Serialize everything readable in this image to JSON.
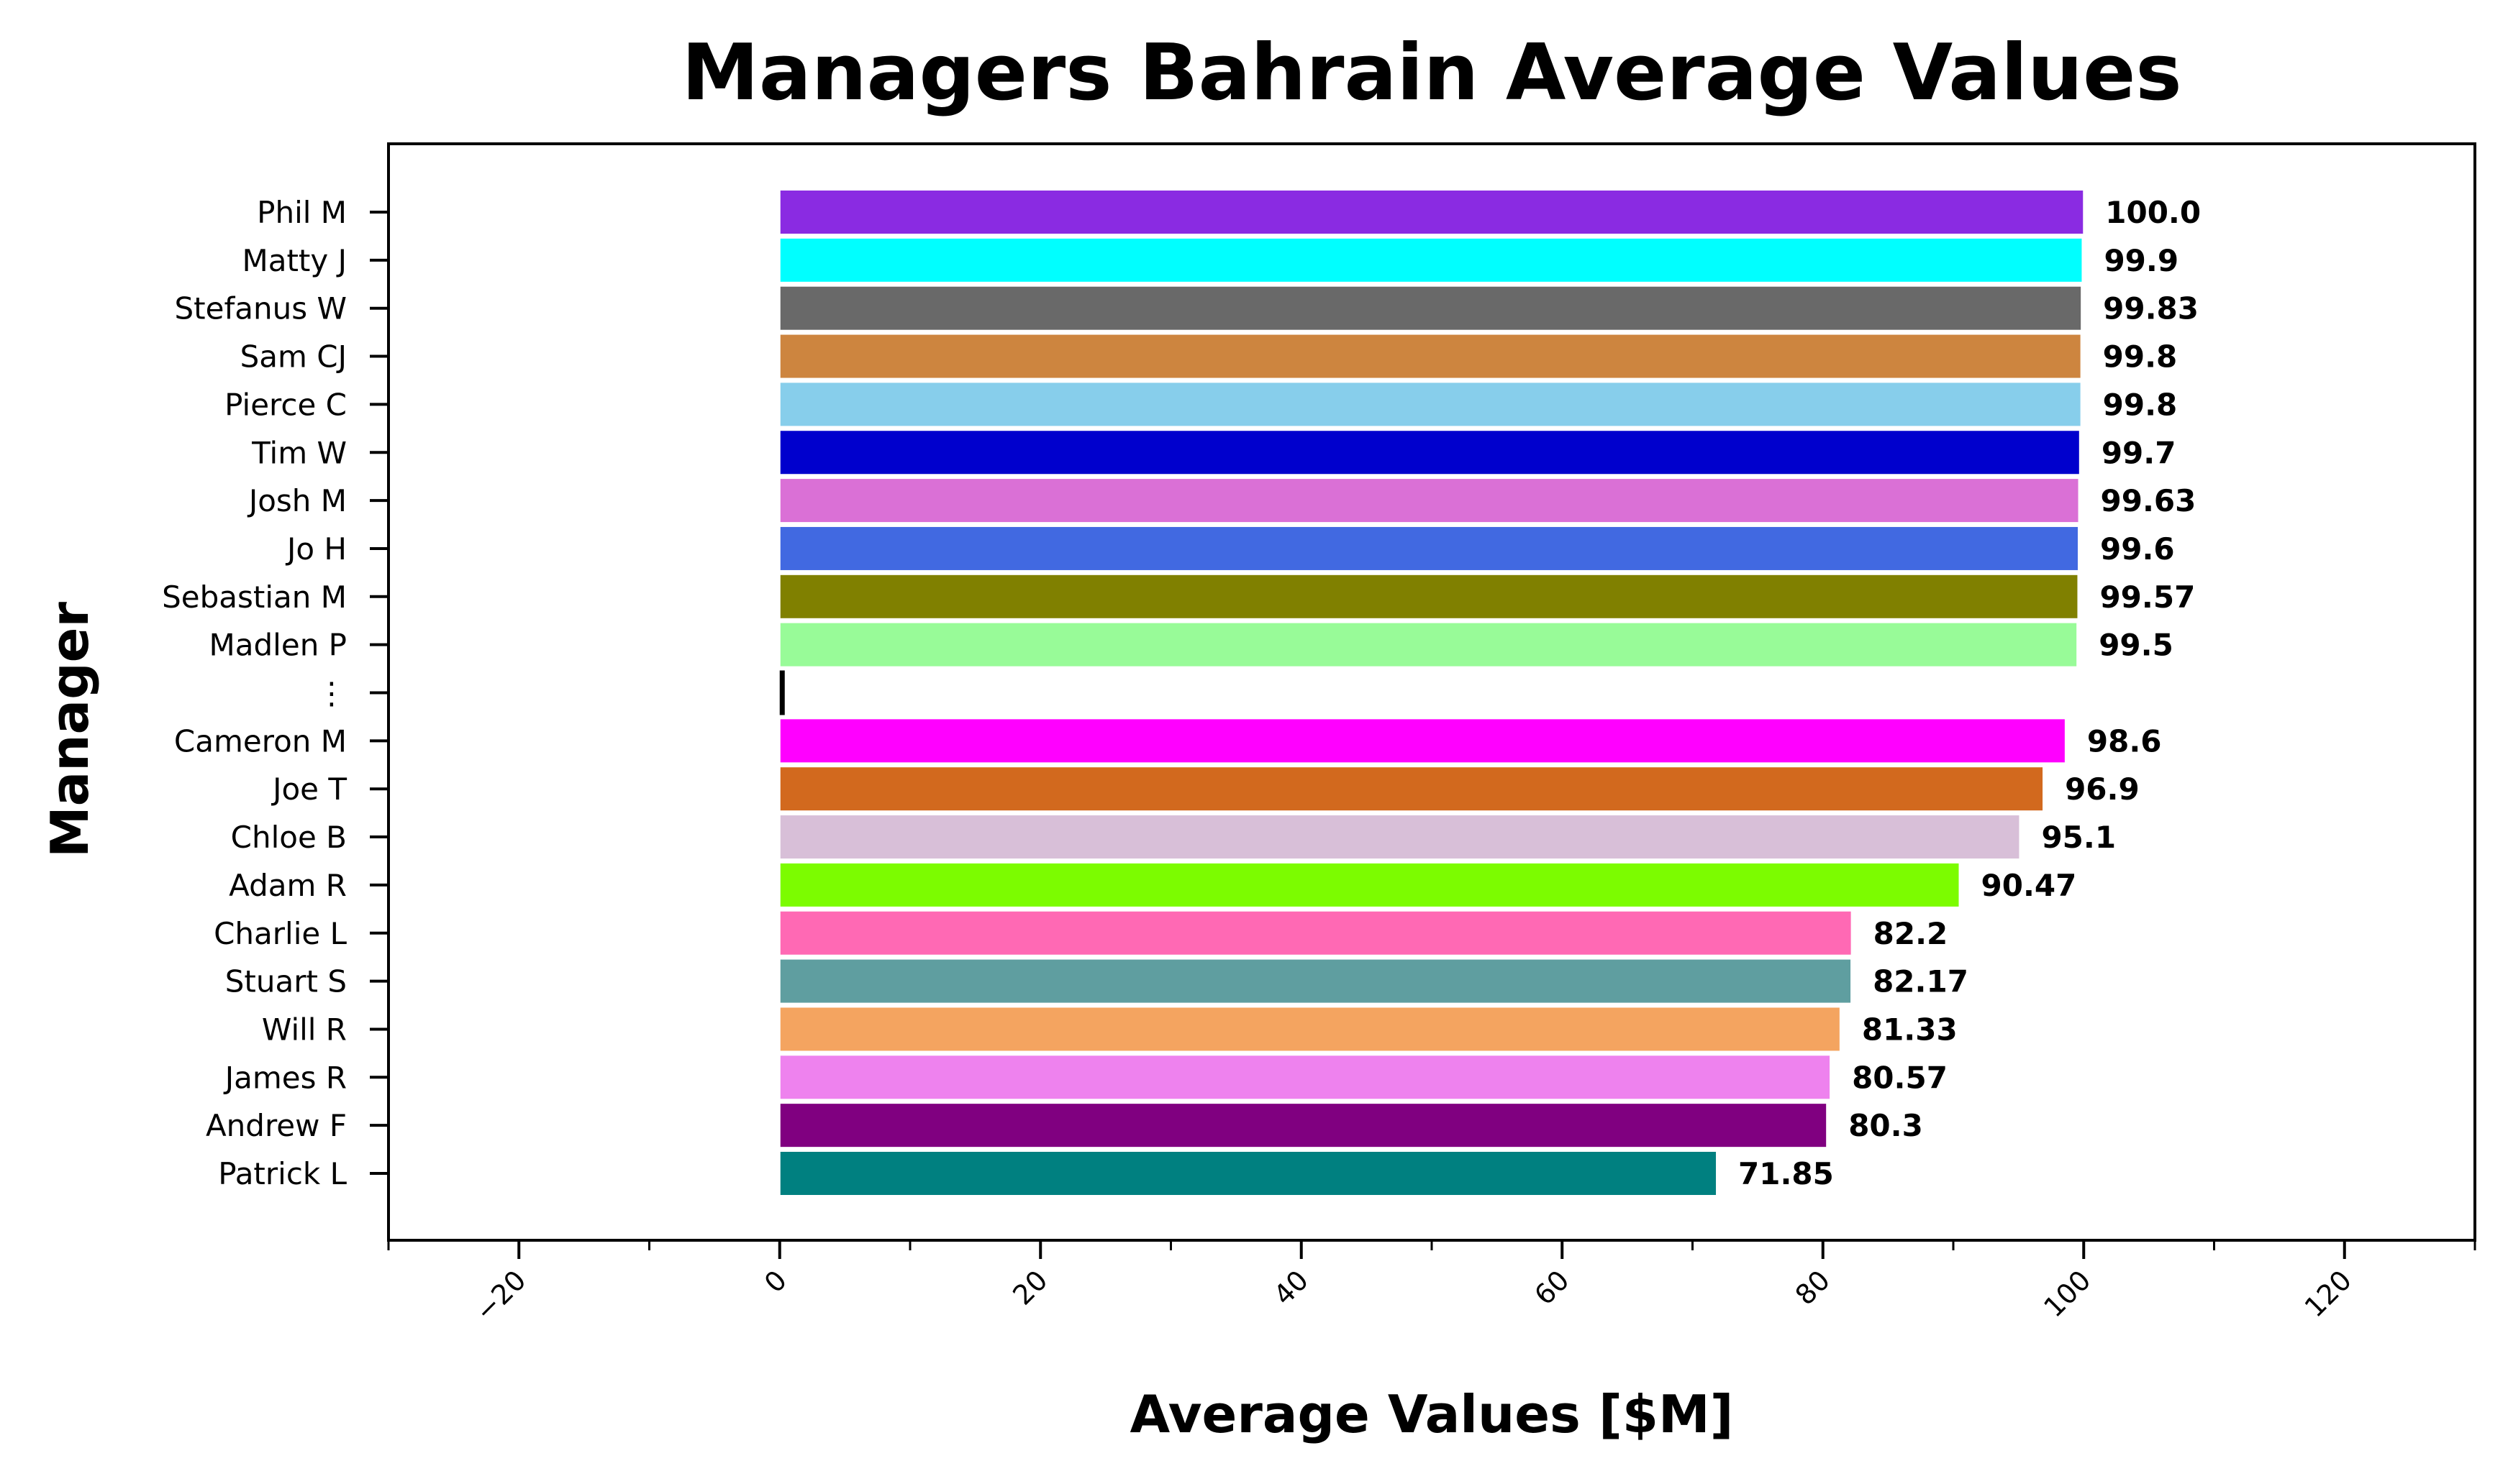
{
  "chart_data": {
    "type": "bar",
    "orientation": "horizontal",
    "title": "Managers Bahrain Average Values",
    "xlabel": "Average Values [$M]",
    "ylabel": "Manager",
    "xlim": [
      -30,
      130
    ],
    "xticks": [
      "−20",
      "0",
      "20",
      "40",
      "60",
      "80",
      "100",
      "120"
    ],
    "grid": false,
    "categories": [
      "Phil M",
      "Matty J",
      "Stefanus W",
      "Sam CJ",
      "Pierce C",
      "Tim W",
      "Josh M",
      "Jo H",
      "Sebastian M",
      "Madlen P",
      "⋮",
      "Cameron M",
      "Joe T",
      "Chloe B",
      "Adam R",
      "Charlie L",
      "Stuart S",
      "Will R",
      "James R",
      "Andrew F",
      "Patrick L"
    ],
    "values": [
      100.0,
      99.9,
      99.83,
      99.8,
      99.8,
      99.7,
      99.63,
      99.6,
      99.57,
      99.5,
      0.3,
      98.6,
      96.9,
      95.1,
      90.47,
      82.2,
      82.17,
      81.33,
      80.57,
      80.3,
      71.85
    ],
    "value_labels": [
      "100.0",
      "99.9",
      "99.83",
      "99.8",
      "99.8",
      "99.7",
      "99.63",
      "99.6",
      "99.57",
      "99.5",
      "",
      "98.6",
      "96.9",
      "95.1",
      "90.47",
      "82.2",
      "82.17",
      "81.33",
      "80.57",
      "80.3",
      "71.85"
    ],
    "colors": [
      "#8a2be2",
      "#00ffff",
      "#696969",
      "#cd853f",
      "#87ceeb",
      "#0000cd",
      "#da70d6",
      "#4169e1",
      "#808000",
      "#98fb98",
      "#000000",
      "#ff00ff",
      "#d2691e",
      "#d8bfd8",
      "#7cfc00",
      "#ff69b4",
      "#5f9ea0",
      "#f4a460",
      "#ee82ee",
      "#800080",
      "#008080"
    ]
  }
}
